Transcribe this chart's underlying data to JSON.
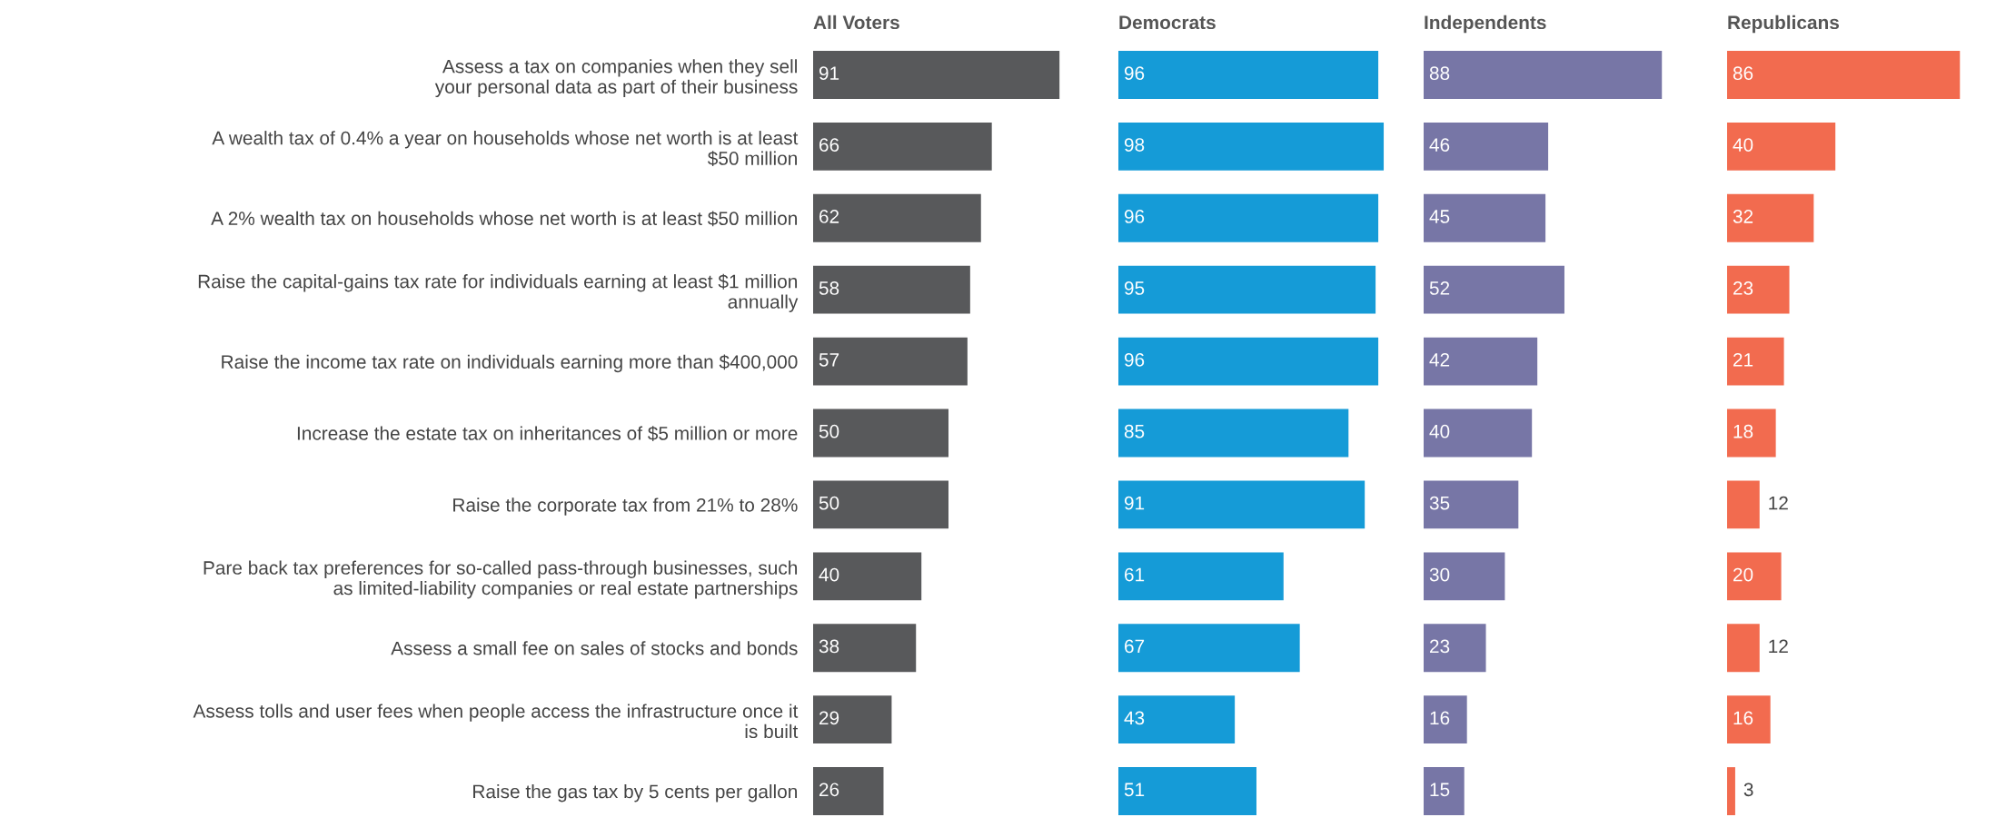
{
  "chart_data": [
    {
      "type": "bar",
      "orientation": "horizontal",
      "title": "All Voters",
      "categories": [
        "Assess a tax on companies when they sell\nyour personal data as part of their business",
        "A wealth tax of 0.4% a year on households whose net worth is at least\n$50 million",
        "A 2% wealth tax on households whose net worth is at least $50 million",
        "Raise the capital-gains tax rate for individuals earning at least $1 million\nannually",
        "Raise the income tax rate on individuals earning more than $400,000",
        "Increase the estate tax on inheritances of $5 million or more",
        "Raise the corporate tax from 21% to 28%",
        "Pare back tax preferences for so-called pass-through businesses, such\nas limited-liability companies or real estate partnerships",
        "Assess a small fee on sales of stocks and bonds",
        "Assess tolls and user fees when people access the infrastructure once it\nis built",
        "Raise the gas tax by 5 cents per gallon"
      ],
      "values": [
        91,
        66,
        62,
        58,
        57,
        50,
        50,
        40,
        38,
        29,
        26
      ],
      "color": "#58595b",
      "data_labels": true,
      "tick_labels": "y"
    },
    {
      "type": "bar",
      "orientation": "horizontal",
      "title": "Democrats",
      "categories": [
        null,
        null,
        null,
        null,
        null,
        null,
        null,
        null,
        null,
        null,
        null
      ],
      "values": [
        96,
        98,
        96,
        95,
        96,
        85,
        91,
        61,
        67,
        43,
        51
      ],
      "color": "#159bd7",
      "data_labels": true,
      "tick_labels": false
    },
    {
      "type": "bar",
      "orientation": "horizontal",
      "title": "Independents",
      "categories": [
        null,
        null,
        null,
        null,
        null,
        null,
        null,
        null,
        null,
        null,
        null
      ],
      "values": [
        88,
        46,
        45,
        52,
        42,
        40,
        35,
        30,
        23,
        16,
        15
      ],
      "color": "#7776a6",
      "data_labels": true,
      "tick_labels": false
    },
    {
      "type": "bar",
      "orientation": "horizontal",
      "title": "Republicans",
      "categories": [
        null,
        null,
        null,
        null,
        null,
        null,
        null,
        null,
        null,
        null,
        null
      ],
      "values": [
        86,
        40,
        32,
        23,
        21,
        18,
        12,
        20,
        12,
        16,
        3
      ],
      "color": "#f26b4f",
      "data_labels": true,
      "tick_labels": false
    }
  ]
}
